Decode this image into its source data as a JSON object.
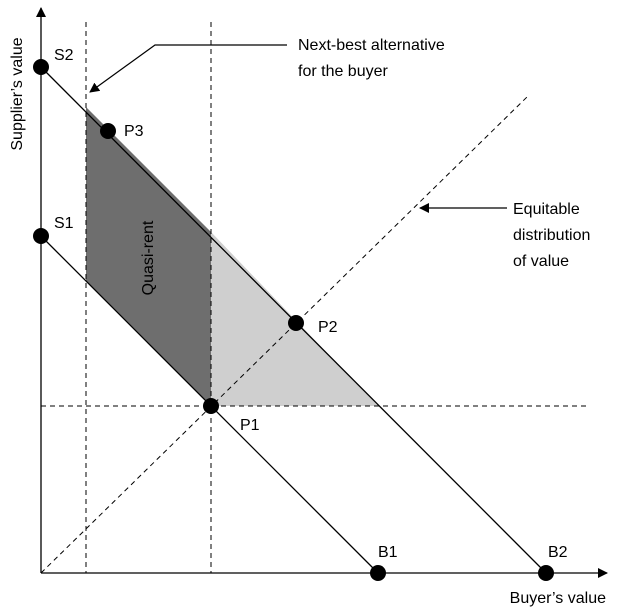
{
  "axes": {
    "x_label": "Buyer’s value",
    "y_label": "Supplier’s value"
  },
  "points": {
    "S1": "S1",
    "S2": "S2",
    "P1": "P1",
    "P2": "P2",
    "P3": "P3",
    "B1": "B1",
    "B2": "B2"
  },
  "regions": {
    "quasi_rent": "Quasi-rent"
  },
  "annotations": {
    "next_best": [
      "Next-best alternative",
      "for the buyer"
    ],
    "equitable": [
      "Equitable",
      "distribution",
      "of value"
    ]
  },
  "colors": {
    "dark_region": "#6e6e6e",
    "light_region": "#cfcfcf",
    "ink": "#000000"
  }
}
